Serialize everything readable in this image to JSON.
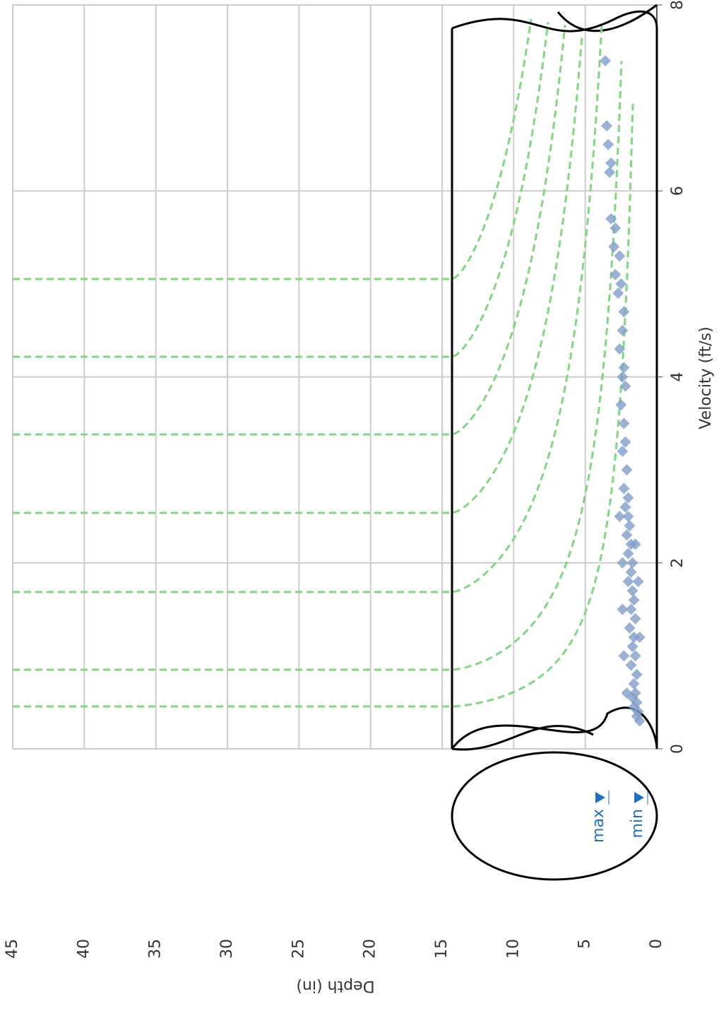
{
  "chart_data": {
    "type": "scatter",
    "x_label": "Velocity (ft/s)",
    "y_label": "Depth (in)",
    "annotations": [
      "max",
      "min"
    ],
    "xlim": [
      0,
      8
    ],
    "xticks": [
      0,
      2,
      4,
      6,
      8
    ],
    "ylim": [
      0,
      45
    ],
    "yticks": [
      0,
      5,
      10,
      15,
      20,
      25,
      30,
      35,
      40,
      45
    ],
    "grid": true,
    "series": [
      {
        "color": "#7f9dcb",
        "x": [
          0.3,
          0.35,
          0.4,
          0.45,
          0.5,
          0.55,
          0.6,
          0.7,
          0.8,
          0.9,
          1.0,
          1.1,
          1.2,
          1.3,
          1.4,
          1.5,
          1.6,
          1.7,
          1.8,
          1.9,
          2.0,
          2.1,
          2.2,
          2.3,
          2.4,
          2.5,
          2.6,
          2.7,
          2.8,
          3.0,
          3.2,
          3.3,
          3.5,
          3.7,
          3.9,
          4.0,
          4.1,
          4.3,
          4.5,
          4.7,
          4.9,
          5.0,
          5.1,
          5.3,
          5.4,
          5.6,
          5.7,
          6.2,
          6.3,
          6.5,
          6.7,
          7.4,
          0.6,
          1.0,
          1.5,
          2.0,
          2.5,
          1.2,
          1.8,
          2.2
        ],
        "y": [
          1.2,
          1.4,
          1.3,
          1.6,
          1.4,
          1.7,
          1.5,
          1.6,
          1.4,
          1.8,
          1.5,
          1.7,
          1.6,
          1.9,
          1.5,
          1.8,
          1.6,
          1.7,
          2.0,
          1.8,
          1.7,
          2.0,
          1.8,
          2.1,
          1.9,
          2.0,
          2.2,
          2.0,
          2.3,
          2.1,
          2.4,
          2.2,
          2.3,
          2.5,
          2.2,
          2.4,
          2.3,
          2.6,
          2.4,
          2.3,
          2.7,
          2.5,
          2.9,
          2.6,
          3.0,
          2.9,
          3.2,
          3.3,
          3.2,
          3.4,
          3.5,
          3.6,
          2.1,
          2.3,
          2.4,
          2.4,
          2.6,
          1.2,
          1.3,
          1.5
        ]
      }
    ]
  }
}
